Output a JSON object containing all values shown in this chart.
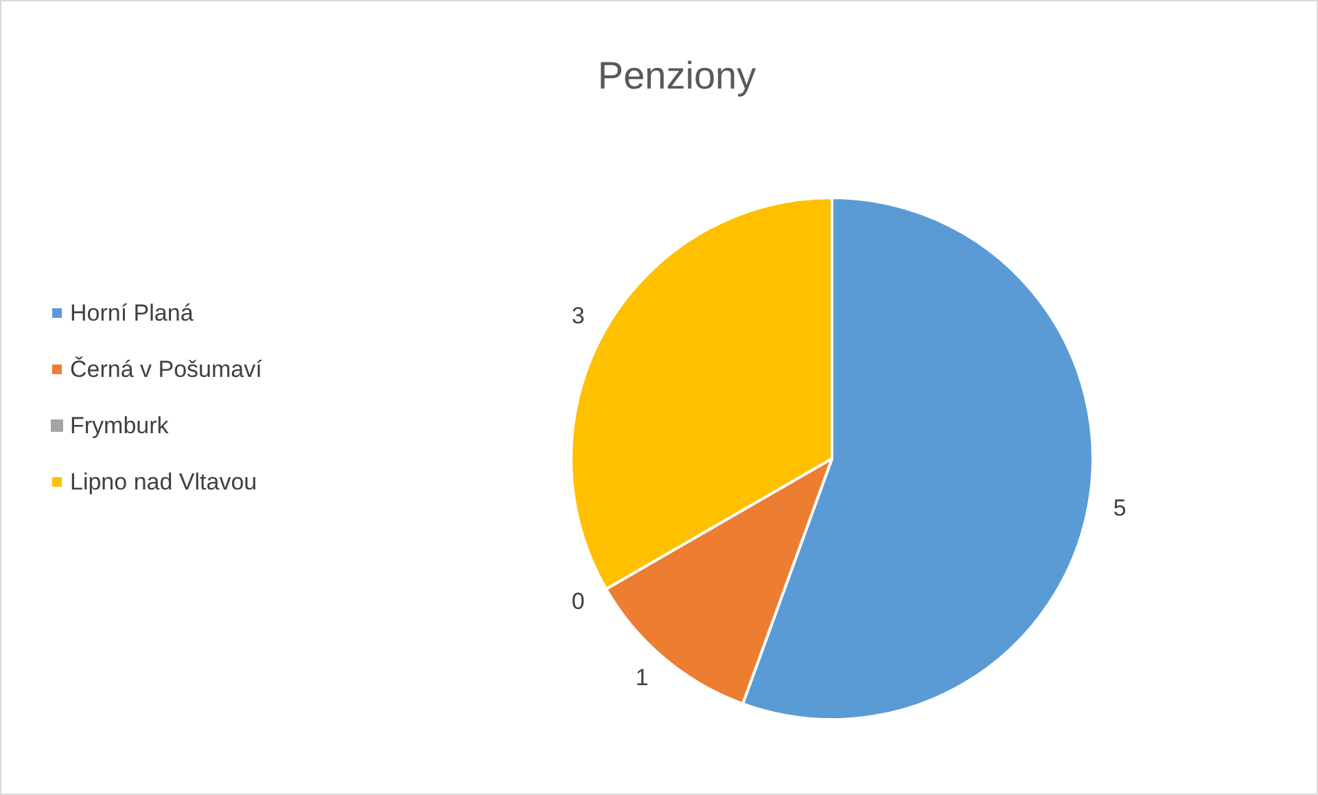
{
  "chart_data": {
    "type": "pie",
    "title": "Penziony",
    "categories": [
      "Horní Planá",
      "Černá v Pošumaví",
      "Frymburk",
      "Lipno nad Vltavou"
    ],
    "values": [
      5,
      1,
      0,
      3
    ],
    "colors": [
      "#5b9bd5",
      "#ed7d31",
      "#a5a5a5",
      "#ffc000"
    ],
    "value_labels": [
      "5",
      "1",
      "0",
      "3"
    ],
    "legend": "left"
  }
}
